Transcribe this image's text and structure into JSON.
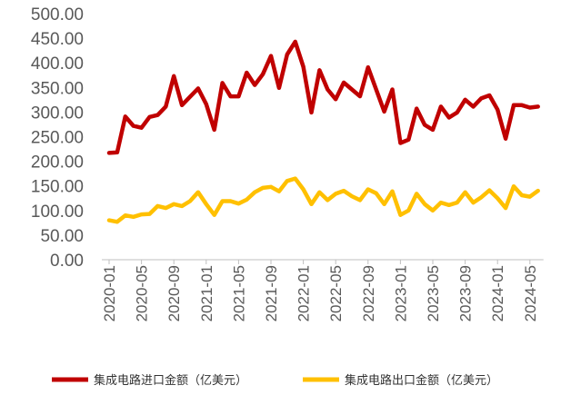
{
  "chart_data": {
    "type": "line",
    "title": "",
    "xlabel": "",
    "ylabel": "",
    "ylim": [
      0,
      500
    ],
    "yticks": [
      "0.00",
      "50.00",
      "100.00",
      "150.00",
      "200.00",
      "250.00",
      "300.00",
      "350.00",
      "400.00",
      "450.00",
      "500.00"
    ],
    "grid": false,
    "legend_placement": "bottom",
    "categories": [
      "2020-01",
      "2020-02",
      "2020-03",
      "2020-04",
      "2020-05",
      "2020-06",
      "2020-07",
      "2020-08",
      "2020-09",
      "2020-10",
      "2020-11",
      "2020-12",
      "2021-01",
      "2021-02",
      "2021-03",
      "2021-04",
      "2021-05",
      "2021-06",
      "2021-07",
      "2021-08",
      "2021-09",
      "2021-10",
      "2021-11",
      "2021-12",
      "2022-01",
      "2022-02",
      "2022-03",
      "2022-04",
      "2022-05",
      "2022-06",
      "2022-07",
      "2022-08",
      "2022-09",
      "2022-10",
      "2022-11",
      "2022-12",
      "2023-01",
      "2023-02",
      "2023-03",
      "2023-04",
      "2023-05",
      "2023-06",
      "2023-07",
      "2023-08",
      "2023-09",
      "2023-10",
      "2023-11",
      "2023-12",
      "2024-01",
      "2024-02",
      "2024-03",
      "2024-04",
      "2024-05",
      "2024-06"
    ],
    "xtick_labels": [
      "2020-01",
      "2020-05",
      "2020-09",
      "2021-01",
      "2021-05",
      "2021-09",
      "2022-01",
      "2022-05",
      "2022-09",
      "2023-01",
      "2023-05",
      "2023-09",
      "2024-01",
      "2024-05"
    ],
    "series": [
      {
        "name": "集成电路进口金额（亿美元）",
        "color": "#C00000",
        "values": [
          217,
          218,
          291,
          272,
          268,
          290,
          294,
          311,
          373,
          314,
          331,
          348,
          316,
          264,
          359,
          332,
          332,
          380,
          355,
          377,
          414,
          349,
          417,
          443,
          392,
          299,
          385,
          346,
          326,
          360,
          346,
          332,
          391,
          346,
          301,
          346,
          237,
          244,
          307,
          274,
          264,
          311,
          289,
          299,
          325,
          311,
          328,
          334,
          305,
          246,
          314,
          314,
          309,
          311
        ]
      },
      {
        "name": "集成电路出口金额（亿美元）",
        "color": "#FFC000",
        "values": [
          80,
          77,
          90,
          87,
          92,
          93,
          109,
          105,
          113,
          109,
          119,
          137,
          113,
          91,
          119,
          119,
          114,
          122,
          137,
          146,
          148,
          139,
          160,
          165,
          143,
          113,
          137,
          121,
          134,
          140,
          129,
          121,
          143,
          135,
          113,
          139,
          91,
          100,
          134,
          113,
          100,
          116,
          111,
          116,
          137,
          116,
          127,
          141,
          125,
          105,
          149,
          131,
          128,
          140
        ]
      }
    ]
  }
}
